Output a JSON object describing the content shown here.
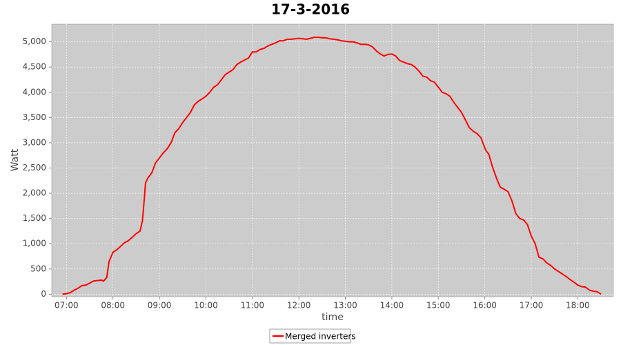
{
  "chart_data": {
    "type": "line",
    "title": "17-3-2016",
    "x_label": "time",
    "y_label": "Watt",
    "x": [
      "06:55",
      "07:00",
      "07:05",
      "07:10",
      "07:15",
      "07:20",
      "07:25",
      "07:30",
      "07:35",
      "07:40",
      "07:45",
      "07:48",
      "07:52",
      "07:55",
      "08:00",
      "08:05",
      "08:10",
      "08:15",
      "08:20",
      "08:25",
      "08:30",
      "08:35",
      "08:38",
      "08:40",
      "08:42",
      "08:45",
      "08:50",
      "08:55",
      "09:00",
      "09:05",
      "09:10",
      "09:15",
      "09:20",
      "09:25",
      "09:30",
      "09:35",
      "09:40",
      "09:45",
      "09:50",
      "09:55",
      "10:00",
      "10:05",
      "10:10",
      "10:15",
      "10:20",
      "10:25",
      "10:30",
      "10:35",
      "10:40",
      "10:45",
      "10:50",
      "10:55",
      "11:00",
      "11:05",
      "11:10",
      "11:15",
      "11:20",
      "11:25",
      "11:30",
      "11:35",
      "11:40",
      "11:45",
      "11:50",
      "11:55",
      "12:00",
      "12:05",
      "12:10",
      "12:15",
      "12:20",
      "12:25",
      "12:30",
      "12:35",
      "12:40",
      "12:45",
      "12:50",
      "12:55",
      "13:00",
      "13:05",
      "13:10",
      "13:15",
      "13:20",
      "13:25",
      "13:30",
      "13:35",
      "13:40",
      "13:45",
      "13:50",
      "13:55",
      "14:00",
      "14:05",
      "14:10",
      "14:15",
      "14:20",
      "14:25",
      "14:30",
      "14:35",
      "14:40",
      "14:45",
      "14:50",
      "14:55",
      "15:00",
      "15:05",
      "15:10",
      "15:15",
      "15:20",
      "15:25",
      "15:30",
      "15:35",
      "15:40",
      "15:45",
      "15:50",
      "15:55",
      "16:00",
      "16:02",
      "16:05",
      "16:10",
      "16:15",
      "16:20",
      "16:25",
      "16:30",
      "16:35",
      "16:40",
      "16:45",
      "16:50",
      "16:55",
      "17:00",
      "17:05",
      "17:10",
      "17:15",
      "17:20",
      "17:25",
      "17:30",
      "17:35",
      "17:40",
      "17:45",
      "17:50",
      "17:55",
      "18:00",
      "18:05",
      "18:10",
      "18:15",
      "18:20",
      "18:25",
      "18:30"
    ],
    "series": [
      {
        "name": "Merged inverters",
        "color": "#ff0000",
        "values": [
          0,
          10,
          30,
          80,
          120,
          170,
          180,
          220,
          260,
          270,
          280,
          260,
          330,
          650,
          830,
          880,
          950,
          1020,
          1060,
          1130,
          1200,
          1250,
          1450,
          1800,
          2200,
          2300,
          2400,
          2600,
          2700,
          2800,
          2880,
          3000,
          3200,
          3280,
          3400,
          3500,
          3600,
          3750,
          3820,
          3870,
          3920,
          4000,
          4100,
          4150,
          4250,
          4350,
          4400,
          4450,
          4550,
          4600,
          4640,
          4680,
          4800,
          4800,
          4850,
          4870,
          4920,
          4950,
          4980,
          5020,
          5020,
          5050,
          5050,
          5060,
          5070,
          5060,
          5050,
          5070,
          5090,
          5090,
          5080,
          5080,
          5060,
          5050,
          5040,
          5020,
          5010,
          5000,
          5000,
          4980,
          4950,
          4950,
          4940,
          4900,
          4820,
          4760,
          4720,
          4750,
          4760,
          4720,
          4630,
          4600,
          4570,
          4550,
          4500,
          4420,
          4320,
          4300,
          4230,
          4200,
          4100,
          4000,
          3970,
          3920,
          3800,
          3700,
          3600,
          3450,
          3300,
          3230,
          3180,
          3100,
          2900,
          2830,
          2780,
          2520,
          2300,
          2120,
          2080,
          2030,
          1850,
          1600,
          1500,
          1470,
          1380,
          1150,
          1000,
          730,
          700,
          620,
          570,
          500,
          450,
          400,
          350,
          290,
          240,
          180,
          150,
          140,
          80,
          60,
          50,
          0
        ]
      }
    ],
    "xlim": [
      "06:41",
      "18:46"
    ],
    "xticks": [
      "07:00",
      "08:00",
      "09:00",
      "10:00",
      "11:00",
      "12:00",
      "13:00",
      "14:00",
      "15:00",
      "16:00",
      "17:00",
      "18:00"
    ],
    "ylim": [
      -50,
      5350
    ],
    "yticks": [
      0,
      500,
      {
        "value": 1000,
        "label": "1,000"
      },
      {
        "value": 1500,
        "label": "1,500"
      },
      {
        "value": 2000,
        "label": "2,000"
      },
      {
        "value": 2500,
        "label": "2,500"
      },
      {
        "value": 3000,
        "label": "3,000"
      },
      {
        "value": 3500,
        "label": "3,500"
      },
      {
        "value": 4000,
        "label": "4,000"
      },
      {
        "value": 4500,
        "label": "4,500"
      },
      {
        "value": 5000,
        "label": "5,000"
      }
    ],
    "grid": true,
    "legend": "bottom"
  }
}
